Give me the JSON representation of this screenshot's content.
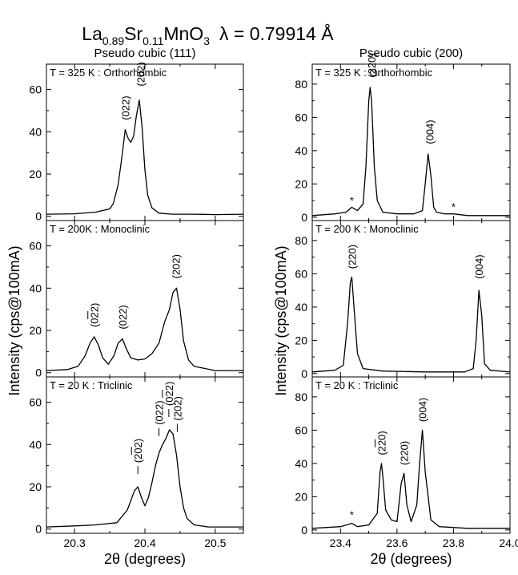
{
  "figure": {
    "title_formula": {
      "a": "La",
      "a_sub": "0.89",
      "b": "Sr",
      "b_sub": "0.11",
      "c": "MnO",
      "c_sub": "3"
    },
    "title_lambda": "λ = 0.79914 Å",
    "ylabel_left": "Intensity (cps@100mA)",
    "ylabel_right": "Intensity (cps@100mA)"
  },
  "chart_data": [
    {
      "type": "line",
      "col": 0,
      "row": 0,
      "column_title": "Pseudo cubic (111)",
      "label": "T = 325 K : Orthorhombic",
      "xlabel": "2θ (degrees)",
      "ylabel": "Intensity (cps@100mA)",
      "xlim": [
        20.26,
        20.54
      ],
      "ylim": [
        -2,
        72
      ],
      "xticks": [
        20.3,
        20.4,
        20.5
      ],
      "yticks": [
        0,
        20,
        40,
        60
      ],
      "series": [
        {
          "x": [
            20.26,
            20.3,
            20.33,
            20.35,
            20.355,
            20.362,
            20.368,
            20.372,
            20.376,
            20.38,
            20.384,
            20.388,
            20.392,
            20.396,
            20.4,
            20.404,
            20.41,
            20.42,
            20.44,
            20.47,
            20.5,
            20.54
          ],
          "y": [
            1,
            1.2,
            2,
            3.5,
            6,
            15,
            30,
            41,
            37,
            35,
            38,
            48,
            55,
            42,
            22,
            10,
            4,
            1.5,
            1,
            1,
            0.8,
            1
          ]
        }
      ],
      "annotations": [
        {
          "text": "(022)",
          "x": 20.372,
          "y": 44,
          "bar": false
        },
        {
          "text": "(202)",
          "x": 20.394,
          "y": 60,
          "bar": false
        }
      ],
      "stars": []
    },
    {
      "type": "line",
      "col": 0,
      "row": 1,
      "label": "T = 200K : Monoclinic",
      "xlabel": "2θ (degrees)",
      "ylabel": "Intensity (cps@100mA)",
      "xlim": [
        20.26,
        20.54
      ],
      "ylim": [
        -2,
        72
      ],
      "xticks": [
        20.3,
        20.4,
        20.5
      ],
      "yticks": [
        0,
        20,
        40,
        60
      ],
      "series": [
        {
          "x": [
            20.26,
            20.29,
            20.305,
            20.315,
            20.322,
            20.328,
            20.334,
            20.34,
            20.348,
            20.356,
            20.362,
            20.368,
            20.374,
            20.38,
            20.39,
            20.4,
            20.41,
            20.42,
            20.428,
            20.435,
            20.44,
            20.445,
            20.45,
            20.455,
            20.462,
            20.47,
            20.5,
            20.54
          ],
          "y": [
            1,
            1.5,
            3,
            8,
            14,
            17,
            13,
            7,
            4,
            8,
            14,
            16,
            11,
            7,
            6,
            6.5,
            9,
            14,
            24,
            30,
            38,
            40,
            30,
            15,
            6,
            3,
            1,
            1
          ]
        }
      ],
      "annotations": [
        {
          "text": "(022)",
          "x": 20.328,
          "y": 20,
          "bar": false,
          "overline": true
        },
        {
          "text": "(022)",
          "x": 20.368,
          "y": 19,
          "bar": false
        },
        {
          "text": "(202)",
          "x": 20.444,
          "y": 43,
          "bar": false
        }
      ],
      "stars": []
    },
    {
      "type": "line",
      "col": 0,
      "row": 2,
      "label": "T = 20 K : Triclinic",
      "xlabel": "2θ (degrees)",
      "ylabel": "Intensity (cps@100mA)",
      "xlim": [
        20.26,
        20.54
      ],
      "ylim": [
        -2,
        72
      ],
      "xticks": [
        20.3,
        20.4,
        20.5
      ],
      "yticks": [
        0,
        20,
        40,
        60
      ],
      "series": [
        {
          "x": [
            20.26,
            20.3,
            20.33,
            20.36,
            20.375,
            20.385,
            20.39,
            20.395,
            20.4,
            20.405,
            20.41,
            20.415,
            20.42,
            20.425,
            20.43,
            20.435,
            20.44,
            20.445,
            20.45,
            20.455,
            20.46,
            20.47,
            20.49,
            20.54
          ],
          "y": [
            1,
            1.5,
            2,
            3,
            9,
            18,
            20,
            15,
            11,
            15,
            22,
            30,
            36,
            40,
            43,
            47,
            45,
            35,
            20,
            10,
            5,
            2,
            1,
            1
          ]
        }
      ],
      "annotations": [
        {
          "text": "(202)",
          "x": 20.39,
          "y": 26,
          "bar": true,
          "overline": true
        },
        {
          "text": "(022)",
          "x": 20.42,
          "y": 44,
          "bar": true
        },
        {
          "text": "(022)",
          "x": 20.434,
          "y": 53,
          "bar": true,
          "overline": true
        },
        {
          "text": "(202)",
          "x": 20.446,
          "y": 46,
          "bar": true
        }
      ],
      "stars": []
    },
    {
      "type": "line",
      "col": 1,
      "row": 0,
      "column_title": "Pseudo cubic (200)",
      "label": "T = 325 K : Orthorhombic",
      "xlabel": "2θ (degrees)",
      "ylabel": "Intensity (cps@100mA)",
      "xlim": [
        23.3,
        24.0
      ],
      "ylim": [
        -2,
        92
      ],
      "xticks": [
        23.4,
        23.6,
        23.8,
        24.0
      ],
      "yticks": [
        0,
        20,
        40,
        60,
        80
      ],
      "series": [
        {
          "x": [
            23.3,
            23.38,
            23.42,
            23.44,
            23.46,
            23.48,
            23.49,
            23.5,
            23.505,
            23.51,
            23.52,
            23.53,
            23.55,
            23.6,
            23.66,
            23.69,
            23.7,
            23.71,
            23.72,
            23.73,
            23.74,
            23.77,
            23.8,
            23.85,
            23.9,
            24.0
          ],
          "y": [
            1,
            2,
            3,
            6,
            4,
            8,
            30,
            70,
            78,
            70,
            30,
            10,
            3,
            2,
            2,
            4,
            20,
            38,
            25,
            6,
            3,
            2,
            2,
            1,
            1,
            1
          ]
        }
      ],
      "annotations": [
        {
          "text": "(220)",
          "x": 23.51,
          "y": 82,
          "bar": false
        },
        {
          "text": "(004)",
          "x": 23.715,
          "y": 42,
          "bar": false
        }
      ],
      "stars": [
        {
          "text": "*",
          "x": 23.44,
          "y": 8
        },
        {
          "text": "*",
          "x": 23.8,
          "y": 4
        }
      ]
    },
    {
      "type": "line",
      "col": 1,
      "row": 1,
      "label": "T = 200 K : Monoclinic",
      "xlabel": "2θ (degrees)",
      "ylabel": "Intensity (cps@100mA)",
      "xlim": [
        23.3,
        24.0
      ],
      "ylim": [
        -2,
        92
      ],
      "xticks": [
        23.4,
        23.6,
        23.8,
        24.0
      ],
      "yticks": [
        0,
        20,
        40,
        60,
        80
      ],
      "series": [
        {
          "x": [
            23.3,
            23.38,
            23.41,
            23.425,
            23.435,
            23.44,
            23.45,
            23.46,
            23.48,
            23.55,
            23.7,
            23.84,
            23.87,
            23.88,
            23.89,
            23.9,
            23.91,
            23.93,
            24.0
          ],
          "y": [
            1,
            2,
            5,
            30,
            55,
            58,
            35,
            12,
            3,
            1.5,
            1,
            1,
            3,
            20,
            50,
            35,
            6,
            2,
            1
          ]
        }
      ],
      "annotations": [
        {
          "text": "(220)",
          "x": 23.44,
          "y": 61,
          "bar": false
        },
        {
          "text": "(004)",
          "x": 23.89,
          "y": 55,
          "bar": false
        }
      ],
      "stars": []
    },
    {
      "type": "line",
      "col": 1,
      "row": 2,
      "label": "T = 20 K : Triclinic",
      "xlabel": "2θ (degrees)",
      "ylabel": "Intensity (cps@100mA)",
      "xlim": [
        23.3,
        24.0
      ],
      "ylim": [
        -2,
        92
      ],
      "xticks": [
        23.4,
        23.6,
        23.8,
        24.0
      ],
      "yticks": [
        0,
        20,
        40,
        60,
        80
      ],
      "series": [
        {
          "x": [
            23.3,
            23.4,
            23.44,
            23.46,
            23.5,
            23.53,
            23.54,
            23.545,
            23.55,
            23.56,
            23.58,
            23.6,
            23.615,
            23.625,
            23.635,
            23.65,
            23.67,
            23.68,
            23.69,
            23.7,
            23.72,
            23.75,
            23.85,
            24.0
          ],
          "y": [
            1,
            2,
            4,
            2,
            3,
            10,
            35,
            40,
            32,
            12,
            6,
            5,
            28,
            34,
            15,
            5,
            15,
            40,
            60,
            35,
            6,
            2,
            1,
            1
          ]
        }
      ],
      "annotations": [
        {
          "text": "(220)",
          "x": 23.545,
          "y": 43,
          "bar": false,
          "overline": true
        },
        {
          "text": "(220)",
          "x": 23.625,
          "y": 37,
          "bar": false
        },
        {
          "text": "(004)",
          "x": 23.69,
          "y": 63,
          "bar": false
        }
      ],
      "stars": [
        {
          "text": "*",
          "x": 23.44,
          "y": 7
        }
      ]
    }
  ]
}
